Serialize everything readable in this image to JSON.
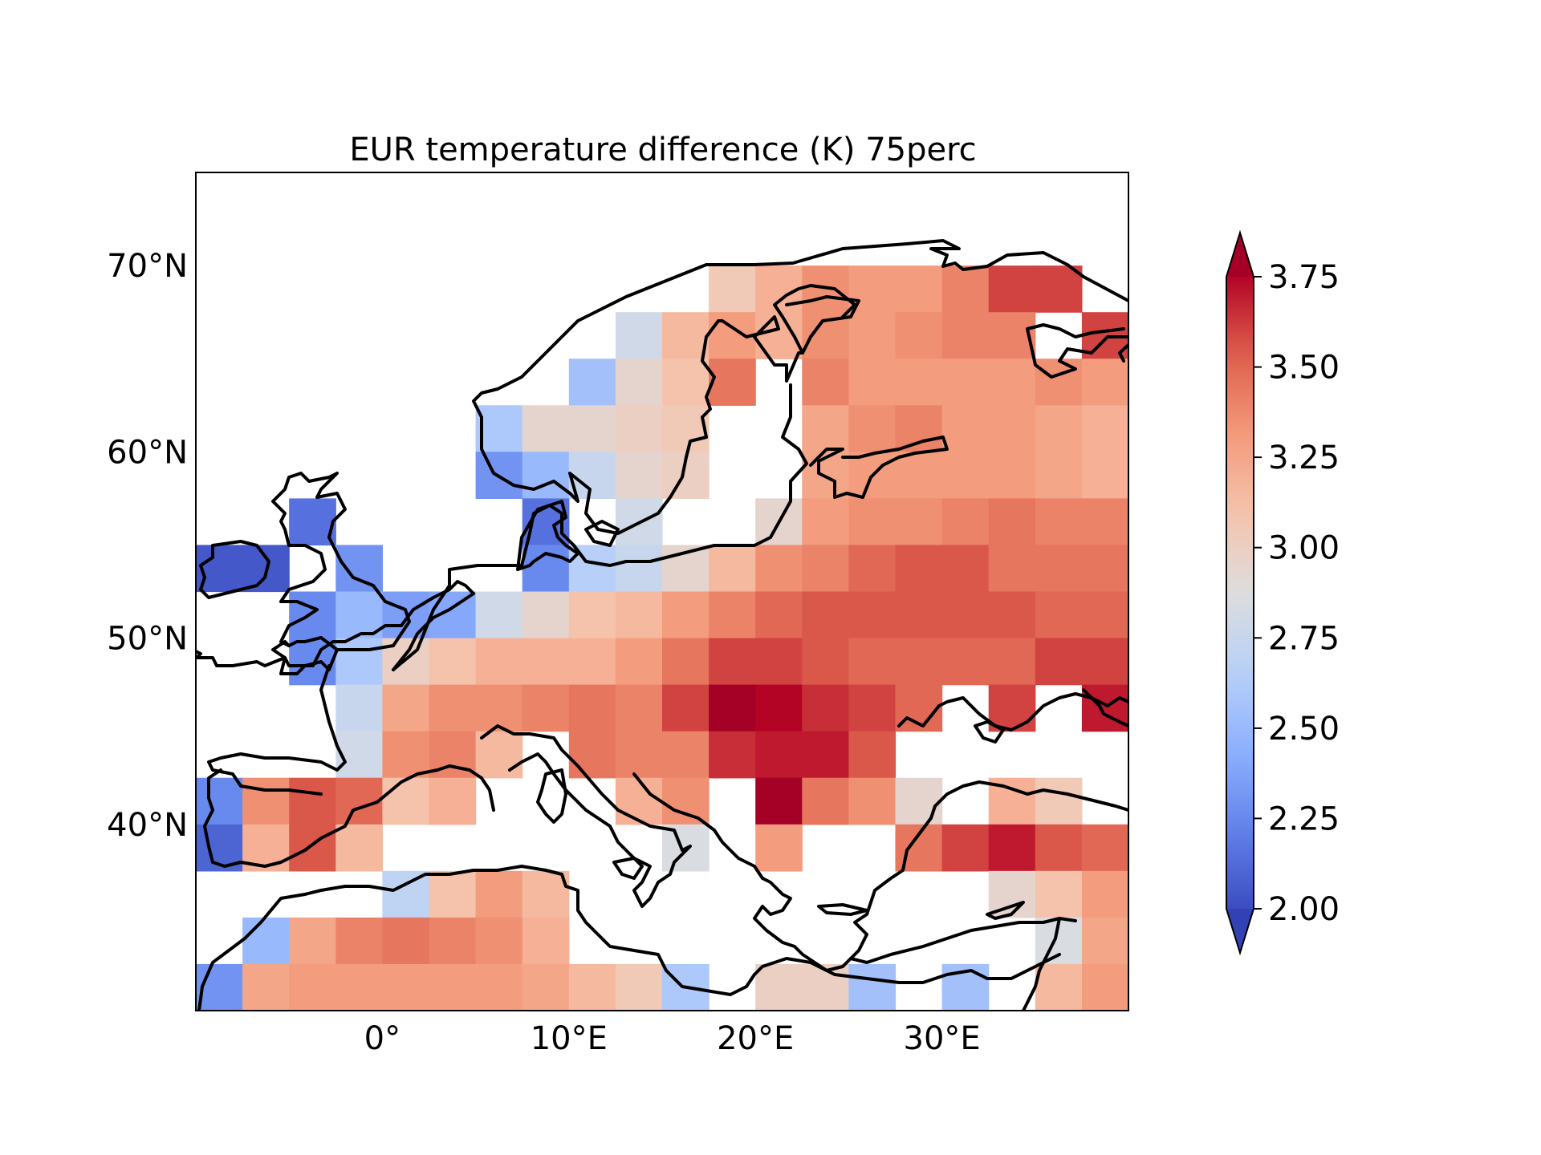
{
  "chart_data": {
    "type": "heatmap",
    "title": "EUR temperature difference (K) 75perc",
    "projection": "PlateCarree",
    "extent": {
      "lon": [
        -10,
        40
      ],
      "lat": [
        30,
        75
      ]
    },
    "cell_size_deg": 2.5,
    "x_ticks": [
      {
        "value": 0,
        "label": "0°"
      },
      {
        "value": 10,
        "label": "10°E"
      },
      {
        "value": 20,
        "label": "20°E"
      },
      {
        "value": 30,
        "label": "30°E"
      }
    ],
    "y_ticks": [
      {
        "value": 40,
        "label": "40°N"
      },
      {
        "value": 50,
        "label": "50°N"
      },
      {
        "value": 60,
        "label": "60°N"
      },
      {
        "value": 70,
        "label": "70°N"
      }
    ],
    "colorbar": {
      "cmap": "coolwarm",
      "vmin": 2.0,
      "vmax": 3.75,
      "extend": "both",
      "ticks": [
        "2.00",
        "2.25",
        "2.50",
        "2.75",
        "3.00",
        "3.25",
        "3.50",
        "3.75"
      ]
    },
    "grid": {
      "lons": [
        -8.75,
        -6.25,
        -3.75,
        -1.25,
        1.25,
        3.75,
        6.25,
        8.75,
        11.25,
        13.75,
        16.25,
        18.75,
        21.25,
        23.75,
        26.25,
        28.75,
        31.25,
        33.75,
        36.25,
        38.75
      ],
      "lats": [
        68.75,
        66.25,
        63.75,
        61.25,
        58.75,
        56.25,
        53.75,
        51.25,
        48.75,
        46.25,
        43.75,
        41.25,
        38.75,
        36.25,
        33.75,
        31.25
      ],
      "values": [
        [
          null,
          null,
          null,
          null,
          null,
          null,
          null,
          null,
          null,
          null,
          null,
          3.05,
          3.2,
          3.35,
          3.3,
          3.3,
          3.4,
          3.6,
          3.6,
          null
        ],
        [
          null,
          null,
          null,
          null,
          null,
          null,
          null,
          null,
          null,
          2.8,
          3.15,
          3.3,
          3.2,
          3.35,
          3.3,
          3.35,
          3.4,
          3.4,
          null,
          3.6
        ],
        [
          null,
          null,
          null,
          null,
          null,
          null,
          null,
          null,
          2.55,
          2.95,
          3.1,
          3.45,
          null,
          3.4,
          3.3,
          3.3,
          3.3,
          3.3,
          3.35,
          3.3
        ],
        [
          null,
          null,
          null,
          null,
          null,
          null,
          2.6,
          2.95,
          2.95,
          3.0,
          3.05,
          null,
          null,
          3.25,
          3.35,
          3.4,
          3.3,
          3.3,
          3.25,
          3.2
        ],
        [
          null,
          null,
          null,
          null,
          null,
          null,
          2.3,
          2.5,
          2.75,
          2.95,
          3.0,
          null,
          null,
          3.25,
          3.3,
          3.3,
          3.3,
          3.3,
          3.25,
          3.2
        ],
        [
          null,
          null,
          2.15,
          null,
          null,
          null,
          null,
          2.15,
          null,
          2.8,
          null,
          null,
          2.95,
          3.3,
          3.35,
          3.35,
          3.4,
          3.45,
          3.4,
          3.4
        ],
        [
          2.05,
          2.05,
          null,
          2.3,
          null,
          null,
          null,
          2.25,
          2.65,
          2.75,
          2.95,
          3.15,
          3.35,
          3.4,
          3.5,
          3.55,
          3.55,
          3.45,
          3.45,
          3.45
        ],
        [
          null,
          null,
          2.25,
          2.5,
          2.35,
          2.4,
          2.8,
          2.95,
          3.1,
          3.15,
          3.3,
          3.4,
          3.5,
          3.55,
          3.55,
          3.55,
          3.55,
          3.55,
          3.5,
          3.5
        ],
        [
          null,
          null,
          2.25,
          2.6,
          3.0,
          3.1,
          3.2,
          3.2,
          3.2,
          3.3,
          3.45,
          3.6,
          3.6,
          3.55,
          3.5,
          3.5,
          3.5,
          3.5,
          3.6,
          3.6
        ],
        [
          null,
          null,
          null,
          2.75,
          3.25,
          3.35,
          3.35,
          3.4,
          3.45,
          3.4,
          3.6,
          3.85,
          3.75,
          3.65,
          3.6,
          3.5,
          null,
          3.6,
          null,
          3.7
        ],
        [
          null,
          null,
          null,
          2.8,
          3.35,
          3.4,
          3.15,
          null,
          3.45,
          3.4,
          3.4,
          3.65,
          3.7,
          3.7,
          3.55,
          null,
          null,
          null,
          null,
          null
        ],
        [
          2.25,
          3.35,
          3.55,
          3.5,
          3.1,
          3.2,
          null,
          null,
          null,
          3.2,
          3.35,
          null,
          3.8,
          3.45,
          3.35,
          2.95,
          null,
          3.2,
          3.05,
          null
        ],
        [
          2.1,
          3.2,
          3.55,
          3.15,
          null,
          null,
          null,
          null,
          null,
          null,
          2.85,
          null,
          3.3,
          null,
          null,
          3.45,
          3.6,
          3.7,
          3.55,
          3.5
        ],
        [
          null,
          null,
          null,
          null,
          2.7,
          3.1,
          3.3,
          3.15,
          null,
          null,
          null,
          null,
          null,
          null,
          null,
          null,
          null,
          2.95,
          3.1,
          3.3
        ],
        [
          null,
          2.5,
          3.25,
          3.4,
          3.45,
          3.4,
          3.35,
          3.2,
          null,
          null,
          null,
          null,
          null,
          null,
          null,
          null,
          null,
          null,
          2.85,
          3.25
        ],
        [
          2.3,
          3.25,
          3.3,
          3.3,
          3.3,
          3.3,
          3.3,
          3.25,
          3.15,
          3.05,
          2.6,
          null,
          3.0,
          3.0,
          2.55,
          null,
          2.55,
          null,
          3.15,
          3.3
        ]
      ]
    }
  },
  "icons": {
    "colorbar_extend_icons": [
      "triangle-up",
      "triangle-down"
    ]
  }
}
